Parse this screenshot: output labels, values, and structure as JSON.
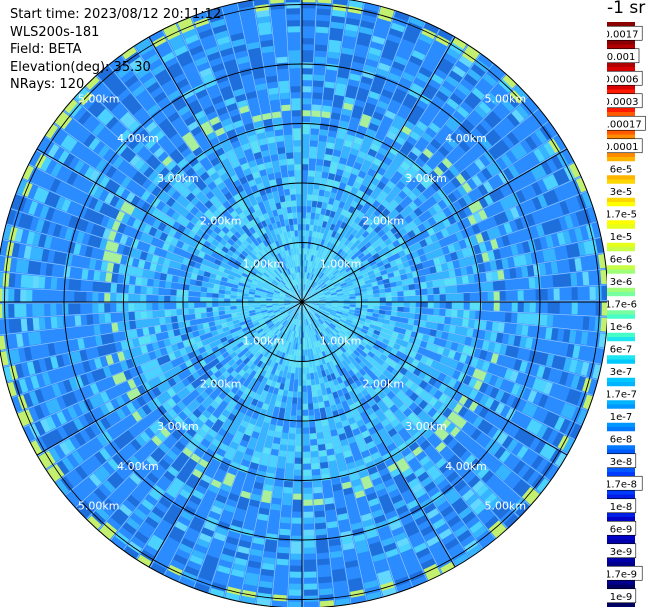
{
  "info": {
    "start_time": "Start time: 2023/08/12 20:11:12",
    "instrument": "WLS200s-181",
    "field": "Field: BETA",
    "elevation": "Elevation(deg): 35.30",
    "nrays": "NRays: 120"
  },
  "unit_label": "-1 sr",
  "chart_data": {
    "type": "heatmap",
    "projection": "polar",
    "field": "BETA",
    "n_rays": 120,
    "elevation_deg": 35.3,
    "range_rings_km": [
      1.0,
      2.0,
      3.0,
      4.0,
      5.0
    ],
    "range_ring_labels": [
      "1.00km",
      "2.00km",
      "3.00km",
      "4.00km",
      "5.00km"
    ],
    "max_range_km": 6.2,
    "colorbar": {
      "ticks": [
        "0.0017",
        "0.001",
        "0.0006",
        "0.0003",
        "0.00017",
        "0.0001",
        "6e-5",
        "3e-5",
        "1.7e-5",
        "1e-5",
        "6e-6",
        "3e-6",
        "1.7e-6",
        "1e-6",
        "6e-7",
        "3e-7",
        "1.7e-7",
        "1e-7",
        "6e-8",
        "3e-8",
        "1.7e-8",
        "1e-8",
        "6e-9",
        "3e-9",
        "1.7e-9",
        "1e-9"
      ],
      "colors": [
        "#8b0000",
        "#b00000",
        "#d80000",
        "#ff1a00",
        "#ff5a00",
        "#ff8c00",
        "#ffb400",
        "#ffd700",
        "#ffff00",
        "#e6ff1a",
        "#c8ff46",
        "#a0ff78",
        "#78ffa0",
        "#46ffc8",
        "#1ee6f0",
        "#00c8ff",
        "#00b4ff",
        "#0096ff",
        "#0078ff",
        "#005aff",
        "#003cff",
        "#001ee6",
        "#0000c8",
        "#0000aa",
        "#00008c",
        "#000064"
      ]
    },
    "gridlines": "on",
    "background_shades": [
      "#2a8cff",
      "#1e6edc",
      "#37b4ff",
      "#4bd2ff",
      "#5ae1f5",
      "#64d7ff",
      "#7df0c8",
      "#aaf09b",
      "#c3f06e",
      "#f0eb3c"
    ]
  }
}
